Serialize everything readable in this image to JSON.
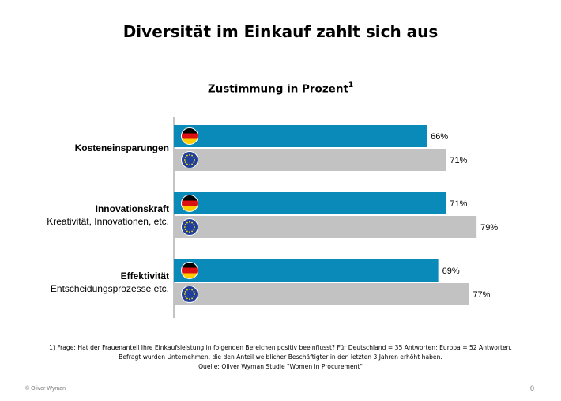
{
  "title": "Diversität im Einkauf zahlt sich aus",
  "subtitle": "Zustimmung in Prozent",
  "subtitle_sup": "1",
  "chart_data": {
    "type": "bar",
    "orientation": "horizontal",
    "value_suffix": "%",
    "xlim": [
      0,
      100
    ],
    "grid": false,
    "categories": [
      {
        "label": "Kosteneinsparungen",
        "sublabel": ""
      },
      {
        "label": "Innovationskraft",
        "sublabel": "Kreativität, Innovationen, etc."
      },
      {
        "label": "Effektivität",
        "sublabel": "Entscheidungsprozesse etc."
      }
    ],
    "series": [
      {
        "key": "de",
        "icon": "germany-flag-icon",
        "color": "#0a8ab8",
        "values": [
          66,
          71,
          69
        ]
      },
      {
        "key": "eu",
        "icon": "eu-flag-icon",
        "color": "#c2c2c2",
        "values": [
          71,
          79,
          77
        ]
      }
    ]
  },
  "footnote": {
    "line1": "1)     Frage: Hat der Frauenanteil Ihre Einkaufsleistung in folgenden Bereichen positiv beeinflusst? Für Deutschland  = 35 Antworten; Europa = 52 Antworten.",
    "line2": "Befragt wurden Unternehmen, die den Anteil weiblicher Beschäftigter  in den letzten 3 Jahren erhöht haben.",
    "line3": "Quelle: Oliver Wyman Studie \"Women in Procurement\""
  },
  "copyright": "© Oliver Wyman",
  "page_number": "0"
}
